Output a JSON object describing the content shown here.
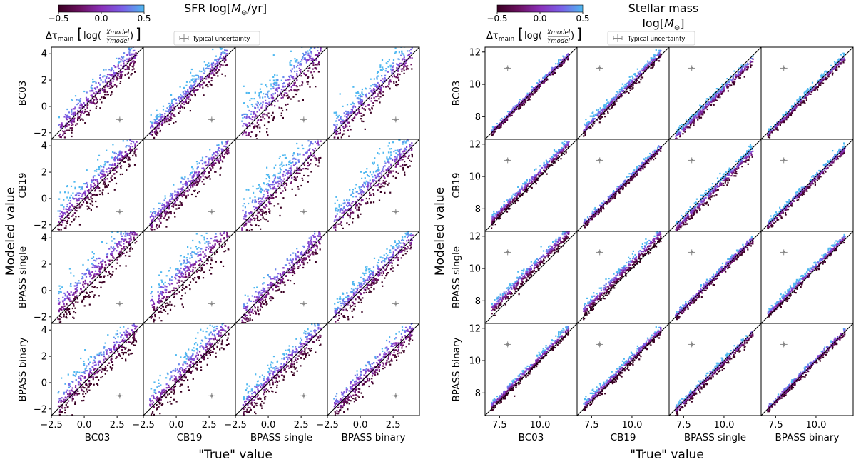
{
  "figure": {
    "xlabel": "\"True\" value",
    "ylabel": "Modeled value",
    "colorbar": {
      "label_prefix": "Δτ",
      "label_sub": "main",
      "label_log": "log(",
      "label_num": "Xmodel",
      "label_den": "Ymodel",
      "label_close": ")",
      "ticks": [
        "−0.5",
        "0.0",
        "0.5"
      ],
      "vmin": -0.5,
      "vmax": 0.5,
      "colors": [
        "#3a0022",
        "#6b1060",
        "#8a30b8",
        "#7a60e8",
        "#4fb8f0"
      ]
    },
    "uncertainty_legend": "Typical uncertainty",
    "models": [
      "BC03",
      "CB19",
      "BPASS single",
      "BPASS binary"
    ]
  },
  "chart_data": [
    {
      "type": "scatter",
      "title": "SFR log[M⊙/yr]",
      "title_text": "SFR log[",
      "title_unit_main": "M",
      "title_unit_sub": "⊙",
      "title_end": "/yr]",
      "xlim": [
        -2.5,
        4.5
      ],
      "ylim": [
        -2.5,
        4.5
      ],
      "xticks": [
        "−2.5",
        "0.0",
        "2.5"
      ],
      "xtick_values": [
        -2.5,
        0.0,
        2.5
      ],
      "yticks": [
        "4",
        "2",
        "0",
        "−2"
      ],
      "ytick_values": [
        4,
        2,
        0,
        -2
      ],
      "row_labels": [
        "BC03",
        "CB19",
        "BPASS single",
        "BPASS binary"
      ],
      "col_labels": [
        "BC03",
        "CB19",
        "BPASS single",
        "BPASS binary"
      ],
      "x_range": [
        -2.0,
        4.0
      ],
      "scatter_sigma": [
        [
          0.55,
          0.55,
          0.95,
          0.7
        ],
        [
          0.7,
          0.5,
          0.9,
          0.7
        ],
        [
          0.8,
          0.8,
          0.55,
          0.55
        ],
        [
          0.7,
          0.65,
          0.6,
          0.5
        ]
      ],
      "offset": [
        [
          0.0,
          0.1,
          0.3,
          0.1
        ],
        [
          0.2,
          0.0,
          0.3,
          0.2
        ],
        [
          0.5,
          0.6,
          0.0,
          0.1
        ],
        [
          0.2,
          0.3,
          0.0,
          0.0
        ]
      ],
      "uncertainty_marker": [
        2.7,
        -1.0
      ],
      "identity_line": true
    },
    {
      "type": "scatter",
      "title": "Stellar mass log[M⊙]",
      "title_line1": "Stellar mass",
      "title_text": "log[",
      "title_unit_main": "M",
      "title_unit_sub": "⊙",
      "title_end": "]",
      "xlim": [
        6.6,
        12.3
      ],
      "ylim": [
        6.6,
        12.3
      ],
      "xticks": [
        "7.5",
        "10.0"
      ],
      "xtick_values": [
        7.5,
        10.0
      ],
      "yticks": [
        "12",
        "10",
        "8"
      ],
      "ytick_values": [
        12,
        10,
        8
      ],
      "row_labels": [
        "BC03",
        "CB19",
        "BPASS single",
        "BPASS binary"
      ],
      "col_labels": [
        "BC03",
        "CB19",
        "BPASS single",
        "BPASS binary"
      ],
      "x_range": [
        7.0,
        11.8
      ],
      "scatter_sigma": [
        [
          0.12,
          0.18,
          0.18,
          0.14
        ],
        [
          0.18,
          0.12,
          0.2,
          0.16
        ],
        [
          0.22,
          0.22,
          0.14,
          0.16
        ],
        [
          0.16,
          0.18,
          0.16,
          0.12
        ]
      ],
      "offset": [
        [
          0.0,
          0.15,
          -0.25,
          -0.1
        ],
        [
          0.25,
          0.0,
          -0.2,
          -0.05
        ],
        [
          0.45,
          0.35,
          0.0,
          0.15
        ],
        [
          0.15,
          0.1,
          -0.1,
          0.0
        ]
      ],
      "uncertainty_marker": [
        8.0,
        11.0
      ],
      "identity_line": true
    }
  ]
}
